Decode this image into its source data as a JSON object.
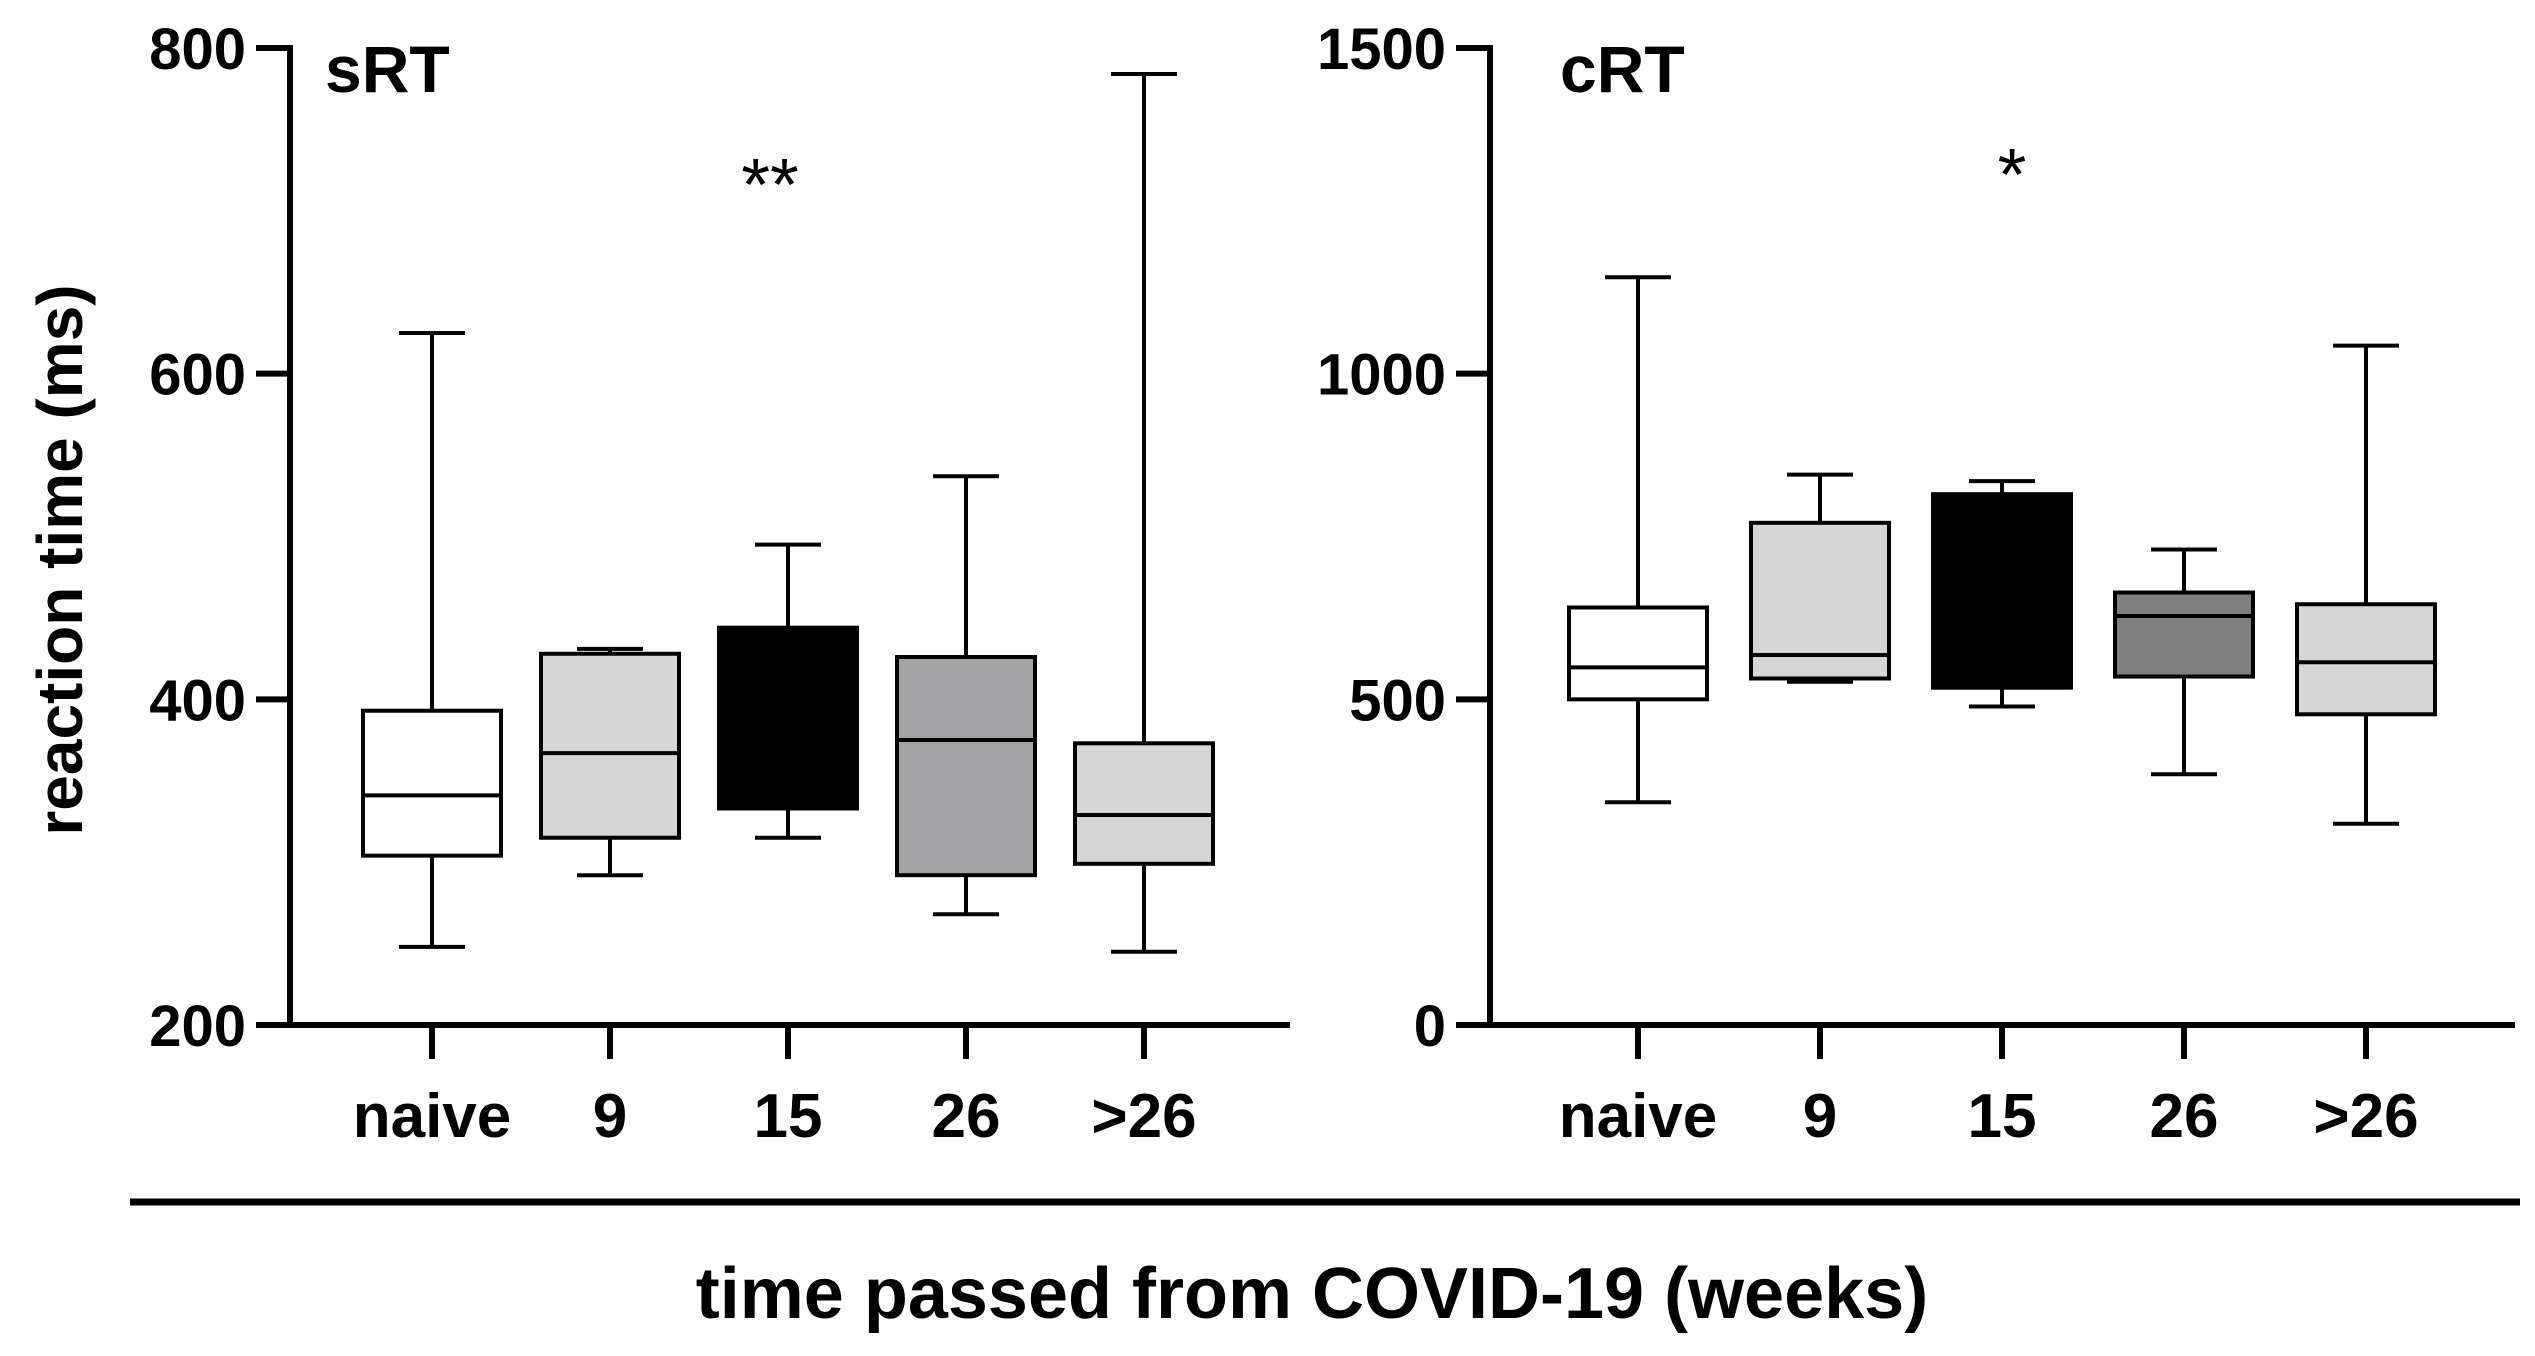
{
  "chart_data": [
    {
      "type": "box",
      "title": "sRT",
      "annotation": "**",
      "ylabel": "reaction time (ms)",
      "ylim": [
        200,
        800
      ],
      "yticks": [
        "200",
        "400",
        "600",
        "800"
      ],
      "categories": [
        "naive",
        "9",
        "15",
        "26",
        ">26"
      ],
      "boxes": [
        {
          "min": 248,
          "q1": 304,
          "median": 341,
          "q3": 393,
          "max": 625,
          "fill": "#ffffff"
        },
        {
          "min": 292,
          "q1": 315,
          "median": 367,
          "q3": 428,
          "max": 431,
          "fill": "#d6d6d6"
        },
        {
          "min": 315,
          "q1": 333,
          "median": 333,
          "q3": 444,
          "max": 495,
          "fill": "#000000"
        },
        {
          "min": 268,
          "q1": 292,
          "median": 375,
          "q3": 426,
          "max": 537,
          "fill": "#a3a3a6"
        },
        {
          "min": 245,
          "q1": 299,
          "median": 329,
          "q3": 373,
          "max": 784,
          "fill": "#d6d6d6"
        }
      ]
    },
    {
      "type": "box",
      "title": "cRT",
      "annotation": "*",
      "ylabel": "",
      "ylim": [
        0,
        1500
      ],
      "yticks": [
        "0",
        "500",
        "1000",
        "1500"
      ],
      "categories": [
        "naive",
        "9",
        "15",
        "26",
        ">26"
      ],
      "boxes": [
        {
          "min": 342,
          "q1": 500,
          "median": 549,
          "q3": 641,
          "max": 1148,
          "fill": "#ffffff"
        },
        {
          "min": 527,
          "q1": 532,
          "median": 568,
          "q3": 771,
          "max": 845,
          "fill": "#d6d6d6"
        },
        {
          "min": 489,
          "q1": 518,
          "median": 518,
          "q3": 815,
          "max": 835,
          "fill": "#000000"
        },
        {
          "min": 385,
          "q1": 535,
          "median": 628,
          "q3": 664,
          "max": 730,
          "fill": "#808080"
        },
        {
          "min": 309,
          "q1": 477,
          "median": 557,
          "q3": 646,
          "max": 1043,
          "fill": "#d6d6d6"
        }
      ]
    }
  ],
  "shared": {
    "ylabel": "reaction time (ms)",
    "xlabel": "time passed from COVID-19 (weeks)"
  }
}
